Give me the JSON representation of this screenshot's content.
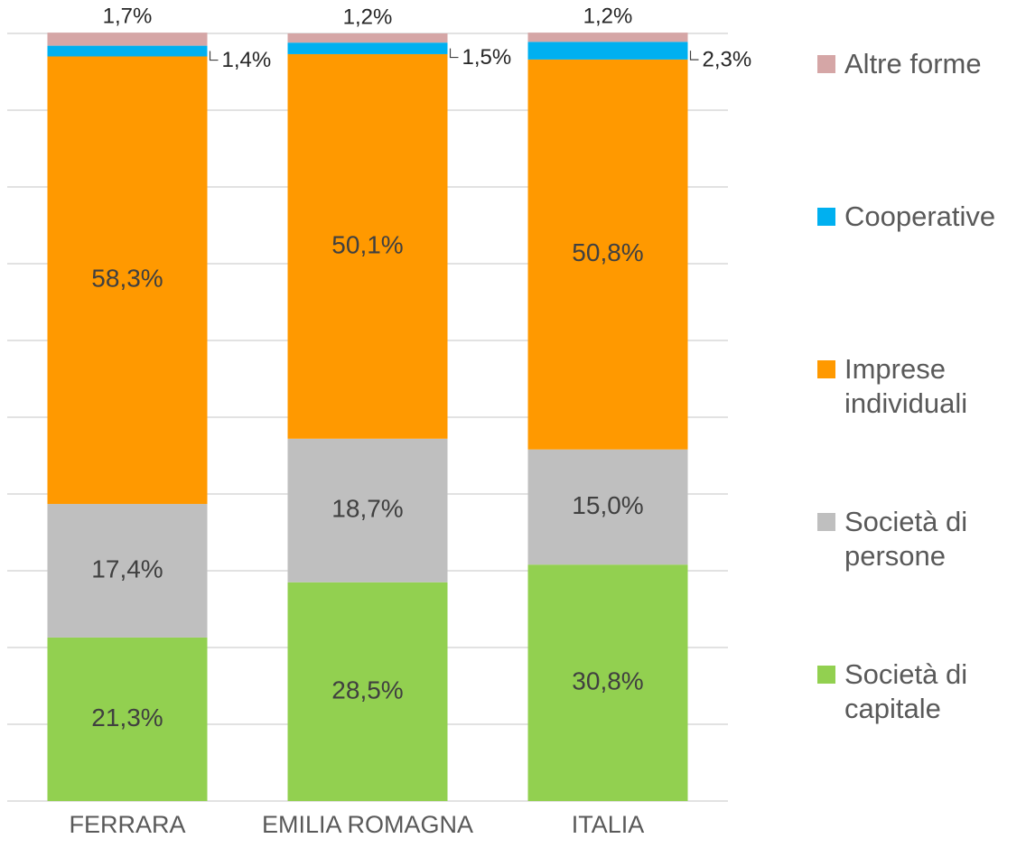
{
  "chart_data": {
    "type": "stacked_bar",
    "categories": [
      "FERRARA",
      "EMILIA ROMAGNA",
      "ITALIA"
    ],
    "series": [
      {
        "name": "Società di capitale",
        "color": "#92d050",
        "values": [
          21.3,
          28.5,
          30.8
        ],
        "value_labels": [
          "21,3%",
          "28,5%",
          "30,8%"
        ]
      },
      {
        "name": "Società di persone",
        "color": "#bfbfbf",
        "values": [
          17.4,
          18.7,
          15.0
        ],
        "value_labels": [
          "17,4%",
          "18,7%",
          "15,0%"
        ]
      },
      {
        "name": "Imprese individuali",
        "color": "#ff9900",
        "values": [
          58.3,
          50.1,
          50.8
        ],
        "value_labels": [
          "58,3%",
          "50,1%",
          "50,8%"
        ]
      },
      {
        "name": "Cooperative",
        "color": "#00b0f0",
        "values": [
          1.4,
          1.5,
          2.3
        ],
        "value_labels": [
          "1,4%",
          "1,5%",
          "2,3%"
        ]
      },
      {
        "name": "Altre forme",
        "color": "#d5a6a6",
        "values": [
          1.7,
          1.2,
          1.2
        ],
        "value_labels": [
          "1,7%",
          "1,2%",
          "1,2%"
        ]
      }
    ],
    "ylim": [
      0,
      100
    ],
    "yticks": [
      0,
      10,
      20,
      30,
      40,
      50,
      60,
      70,
      80,
      90,
      100
    ],
    "grid": true,
    "legend": "right"
  }
}
